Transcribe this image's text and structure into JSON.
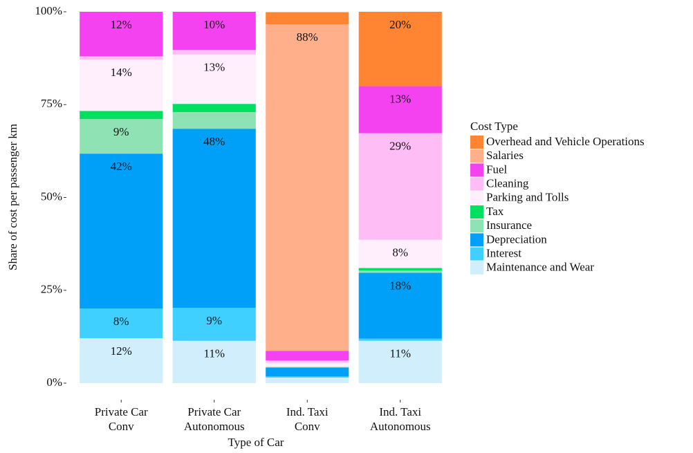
{
  "chart_data": {
    "type": "stacked_bar",
    "categories": [
      [
        "Private Car",
        "Conv"
      ],
      [
        "Private Car",
        "Autonomous"
      ],
      [
        "Ind. Taxi",
        "Conv"
      ],
      [
        "Ind. Taxi",
        "Autonomous"
      ]
    ],
    "xlabel": "Type of Car",
    "ylabel": "Share of cost per passenger km",
    "legend_title": "Cost Type",
    "ylim": [
      0,
      100
    ],
    "yticks": [
      {
        "value": 0,
        "label": "0%"
      },
      {
        "value": 25,
        "label": "25%"
      },
      {
        "value": 50,
        "label": "50%"
      },
      {
        "value": 75,
        "label": "75%"
      },
      {
        "value": 100,
        "label": "100%"
      }
    ],
    "series": [
      {
        "name": "Overhead and Vehicle Operations",
        "color": "#ff8533",
        "values": [
          0,
          0,
          3.3,
          20.0
        ],
        "value_labels": [
          null,
          null,
          null,
          "20%"
        ]
      },
      {
        "name": "Salaries",
        "color": "#ffb08a",
        "values": [
          0,
          0,
          87.9,
          0
        ],
        "value_labels": [
          null,
          null,
          "88%",
          null
        ]
      },
      {
        "name": "Fuel",
        "color": "#f542f0",
        "values": [
          12.0,
          10.3,
          2.6,
          12.7
        ],
        "value_labels": [
          "12%",
          "10%",
          null,
          "13%"
        ]
      },
      {
        "name": "Cleaning",
        "color": "#ffbdf5",
        "values": [
          0.9,
          1.2,
          0.6,
          28.7
        ],
        "value_labels": [
          null,
          null,
          null,
          "29%"
        ]
      },
      {
        "name": "Parking and Tolls",
        "color": "#ffeefc",
        "values": [
          13.8,
          13.3,
          1.1,
          7.6
        ],
        "value_labels": [
          "14%",
          "13%",
          null,
          "8%"
        ]
      },
      {
        "name": "Tax",
        "color": "#00e060",
        "values": [
          2.2,
          2.2,
          0,
          0.7
        ],
        "value_labels": [
          null,
          null,
          null,
          null
        ]
      },
      {
        "name": "Insurance",
        "color": "#8ee2b4",
        "values": [
          9.3,
          4.5,
          0.2,
          0.6
        ],
        "value_labels": [
          "9%",
          null,
          null,
          null
        ]
      },
      {
        "name": "Depreciation",
        "color": "#00a0f8",
        "values": [
          41.7,
          48.2,
          2.4,
          17.7
        ],
        "value_labels": [
          "42%",
          "48%",
          null,
          "18%"
        ]
      },
      {
        "name": "Interest",
        "color": "#40d0ff",
        "values": [
          8.0,
          8.9,
          0.3,
          0.6
        ],
        "value_labels": [
          "8%",
          "9%",
          null,
          null
        ]
      },
      {
        "name": "Maintenance and Wear",
        "color": "#d0eefb",
        "values": [
          12.1,
          11.4,
          1.5,
          11.4
        ],
        "value_labels": [
          "12%",
          "11%",
          null,
          "11%"
        ]
      }
    ]
  }
}
